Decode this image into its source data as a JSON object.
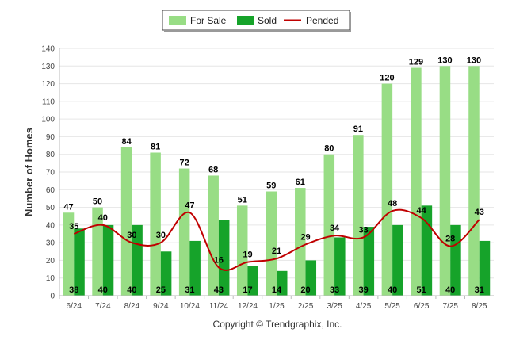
{
  "chart_data": {
    "type": "bar",
    "categories": [
      "6/24",
      "7/24",
      "8/24",
      "9/24",
      "10/24",
      "11/24",
      "12/24",
      "1/25",
      "2/25",
      "3/25",
      "4/25",
      "5/25",
      "6/25",
      "7/25",
      "8/25"
    ],
    "series": [
      {
        "name": "For Sale",
        "type": "bar",
        "color": "#98dd85",
        "values": [
          47,
          50,
          84,
          81,
          72,
          68,
          51,
          59,
          61,
          80,
          91,
          120,
          129,
          130,
          130
        ]
      },
      {
        "name": "Sold",
        "type": "bar",
        "color": "#16a32a",
        "values": [
          38,
          40,
          40,
          25,
          31,
          43,
          17,
          14,
          20,
          33,
          39,
          40,
          51,
          40,
          31
        ]
      },
      {
        "name": "Pended",
        "type": "line",
        "color": "#c00000",
        "values": [
          35,
          40,
          30,
          30,
          47,
          16,
          19,
          21,
          29,
          34,
          33,
          48,
          44,
          28,
          43
        ]
      }
    ],
    "ylabel": "Number of Homes",
    "xlabel": "",
    "ylim": [
      0,
      140
    ],
    "yticks": [
      0,
      10,
      20,
      30,
      40,
      50,
      60,
      70,
      80,
      90,
      100,
      110,
      120,
      130,
      140
    ],
    "grid": true,
    "legend_position": "top-center",
    "footer": "Copyright © Trendgraphix, Inc."
  }
}
